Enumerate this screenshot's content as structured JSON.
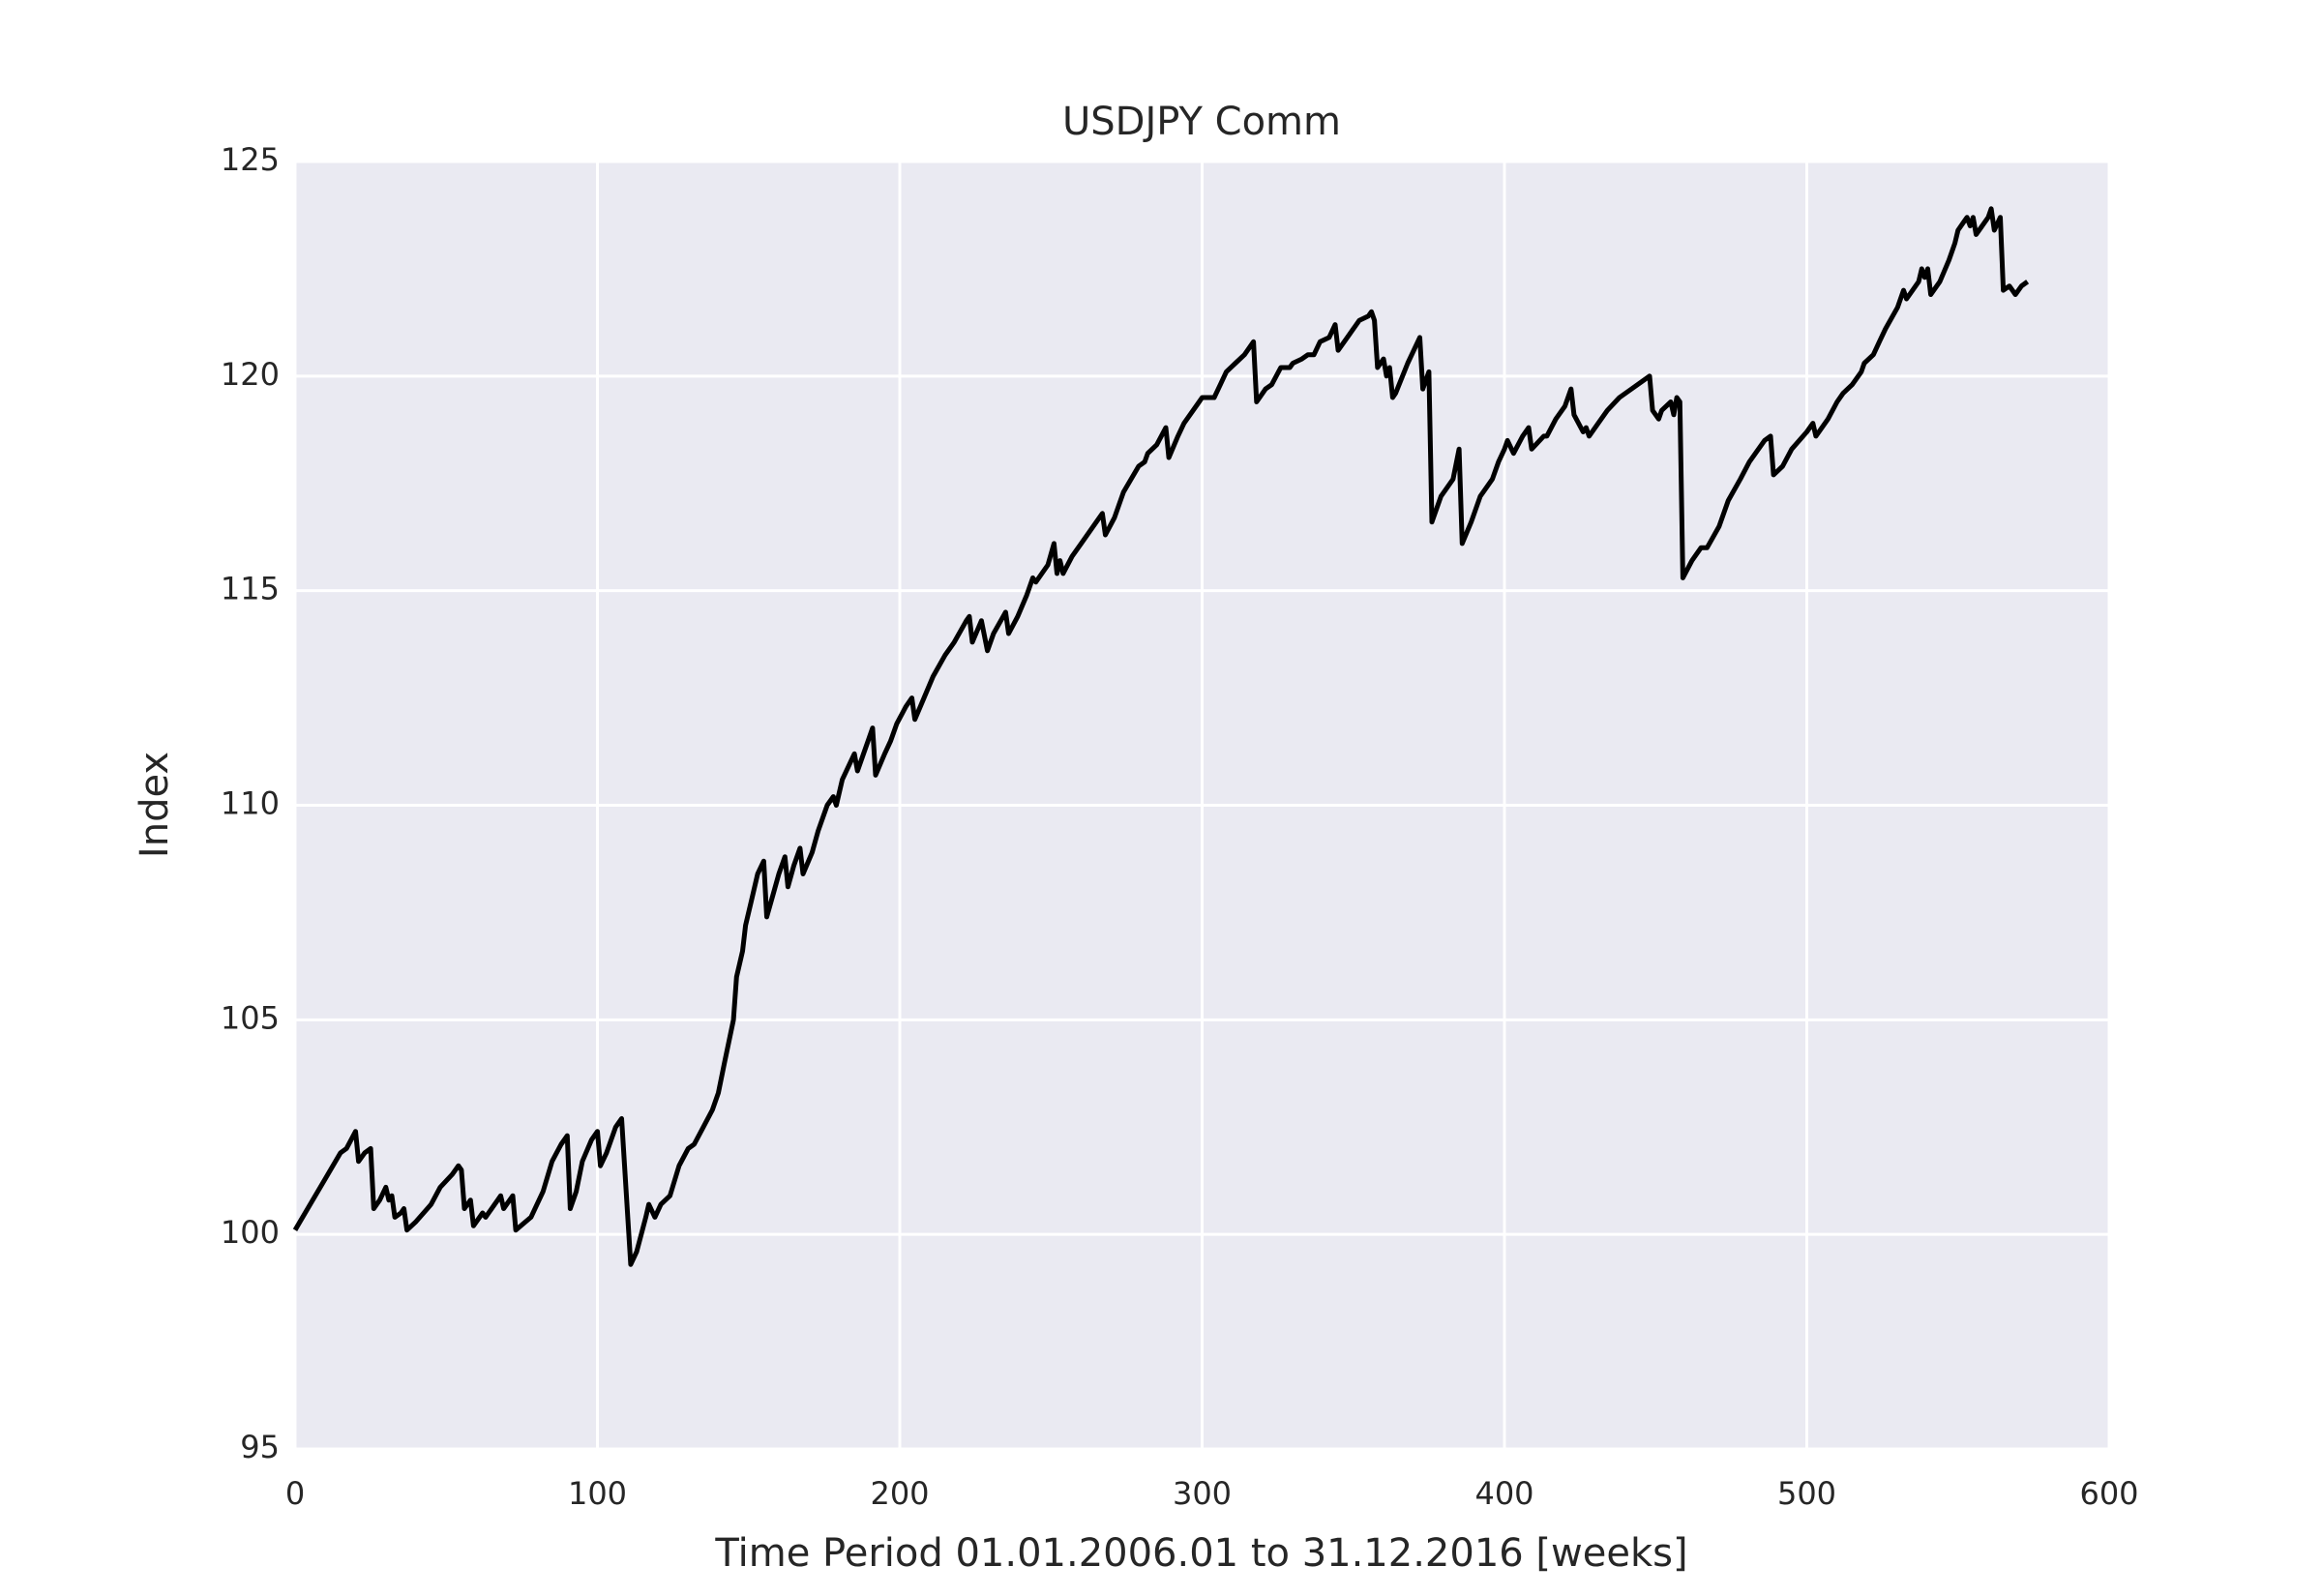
{
  "chart_data": {
    "type": "line",
    "title": "USDJPY Comm",
    "x_label": "Time Period 01.01.2006.01 to 31.12.2016 [weeks]",
    "y_label": "Index",
    "color": "#000000",
    "grid": true,
    "xlim": [
      0,
      600
    ],
    "xticks": [
      0,
      100,
      200,
      300,
      400,
      500,
      600
    ],
    "ylim": [
      95,
      125
    ],
    "yticks": [
      95,
      100,
      105,
      110,
      115,
      120,
      125
    ],
    "x": [
      0,
      5,
      10,
      15,
      17,
      20,
      21,
      23,
      25,
      26,
      28,
      30,
      31,
      32,
      33,
      35,
      36,
      37,
      40,
      45,
      48,
      52,
      54,
      55,
      56,
      58,
      59,
      62,
      63,
      67,
      68,
      69,
      72,
      73,
      78,
      82,
      85,
      88,
      90,
      91,
      93,
      95,
      98,
      100,
      101,
      103,
      106,
      108,
      111,
      113,
      116,
      117,
      119,
      121,
      124,
      127,
      130,
      132,
      135,
      138,
      140,
      142,
      145,
      146,
      148,
      149,
      151,
      153,
      155,
      156,
      158,
      160,
      162,
      163,
      165,
      167,
      168,
      171,
      173,
      176,
      178,
      179,
      181,
      185,
      186,
      190,
      191,
      192,
      195,
      197,
      199,
      202,
      204,
      205,
      208,
      211,
      215,
      218,
      222,
      223,
      224,
      227,
      229,
      231,
      235,
      236,
      239,
      242,
      244,
      245,
      249,
      251,
      252,
      253,
      254,
      257,
      260,
      266,
      267,
      268,
      271,
      274,
      279,
      281,
      282,
      285,
      288,
      289,
      292,
      294,
      299,
      300,
      304,
      306,
      308,
      311,
      314,
      317,
      318,
      321,
      323,
      326,
      329,
      330,
      333,
      335,
      337,
      339,
      342,
      344,
      345,
      348,
      352,
      355,
      356,
      357,
      358,
      360,
      361,
      362,
      363,
      364,
      368,
      372,
      373,
      375,
      376,
      379,
      383,
      385,
      386,
      389,
      392,
      396,
      398,
      400,
      401,
      403,
      406,
      408,
      409,
      413,
      414,
      417,
      420,
      422,
      423,
      426,
      427,
      428,
      431,
      434,
      438,
      442,
      448,
      449,
      451,
      452,
      455,
      456,
      457,
      458,
      459,
      462,
      465,
      467,
      471,
      474,
      478,
      481,
      486,
      488,
      489,
      492,
      495,
      500,
      502,
      503,
      507,
      510,
      512,
      515,
      518,
      519,
      522,
      524,
      526,
      530,
      532,
      533,
      537,
      538,
      539,
      540,
      541,
      544,
      547,
      549,
      550,
      552,
      553,
      554,
      555,
      556,
      557,
      560,
      561,
      562,
      564,
      565,
      567,
      568,
      569,
      571,
      573
    ],
    "values": [
      100.1,
      100.7,
      101.3,
      101.9,
      102.0,
      102.4,
      101.7,
      101.9,
      102.0,
      100.6,
      100.8,
      101.1,
      100.8,
      100.9,
      100.4,
      100.5,
      100.6,
      100.1,
      100.3,
      100.7,
      101.1,
      101.4,
      101.6,
      101.5,
      100.6,
      100.8,
      100.2,
      100.5,
      100.4,
      100.8,
      100.9,
      100.6,
      100.9,
      100.1,
      100.4,
      101.0,
      101.7,
      102.1,
      102.3,
      100.6,
      101.0,
      101.7,
      102.2,
      102.4,
      101.6,
      101.9,
      102.5,
      102.7,
      99.3,
      99.6,
      100.4,
      100.7,
      100.4,
      100.7,
      100.9,
      101.6,
      102.0,
      102.1,
      102.5,
      102.9,
      103.3,
      104.0,
      105.0,
      106.0,
      106.6,
      107.2,
      107.8,
      108.4,
      108.7,
      107.4,
      107.9,
      108.4,
      108.8,
      108.1,
      108.6,
      109.0,
      108.4,
      108.9,
      109.4,
      110.0,
      110.2,
      110.0,
      110.6,
      111.2,
      110.8,
      111.6,
      111.8,
      110.7,
      111.2,
      111.5,
      111.9,
      112.3,
      112.5,
      112.0,
      112.5,
      113.0,
      113.5,
      113.8,
      114.3,
      114.4,
      113.8,
      114.3,
      113.6,
      114.0,
      114.5,
      114.0,
      114.4,
      114.9,
      115.3,
      115.2,
      115.6,
      116.1,
      115.4,
      115.7,
      115.4,
      115.8,
      116.1,
      116.7,
      116.8,
      116.3,
      116.7,
      117.3,
      117.9,
      118.0,
      118.2,
      118.4,
      118.8,
      118.1,
      118.6,
      118.9,
      119.4,
      119.5,
      119.5,
      119.8,
      120.1,
      120.3,
      120.5,
      120.8,
      119.4,
      119.7,
      119.8,
      120.2,
      120.2,
      120.3,
      120.4,
      120.5,
      120.5,
      120.8,
      120.9,
      121.2,
      120.6,
      120.9,
      121.3,
      121.4,
      121.5,
      121.3,
      120.2,
      120.4,
      120.0,
      120.2,
      119.5,
      119.6,
      120.3,
      120.9,
      119.7,
      120.1,
      116.6,
      117.2,
      117.6,
      118.3,
      116.1,
      116.6,
      117.2,
      117.6,
      118.0,
      118.3,
      118.5,
      118.2,
      118.6,
      118.8,
      118.3,
      118.6,
      118.6,
      119.0,
      119.3,
      119.7,
      119.1,
      118.7,
      118.8,
      118.6,
      118.9,
      119.2,
      119.5,
      119.7,
      120.0,
      119.2,
      119.0,
      119.2,
      119.4,
      119.1,
      119.5,
      119.4,
      115.3,
      115.7,
      116.0,
      116.0,
      116.5,
      117.1,
      117.6,
      118.0,
      118.5,
      118.6,
      117.7,
      117.9,
      118.3,
      118.7,
      118.9,
      118.6,
      119.0,
      119.4,
      119.6,
      119.8,
      120.1,
      120.3,
      120.5,
      120.8,
      121.1,
      121.6,
      122.0,
      121.8,
      122.2,
      122.5,
      122.3,
      122.5,
      121.9,
      122.2,
      122.7,
      123.1,
      123.4,
      123.6,
      123.7,
      123.5,
      123.7,
      123.3,
      123.4,
      123.7,
      123.9,
      123.4,
      123.7,
      122.0,
      122.1,
      122.0,
      121.9,
      122.1,
      122.2
    ]
  }
}
